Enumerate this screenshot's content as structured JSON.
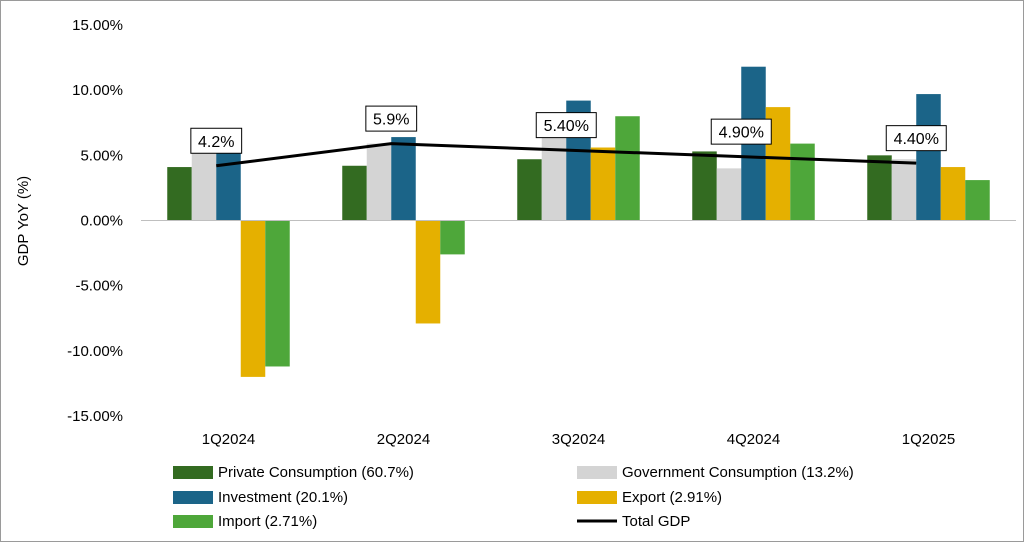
{
  "chart_data": {
    "type": "bar",
    "title": "",
    "xlabel": "",
    "ylabel": "GDP YoY (%)",
    "ylim": [
      -15,
      15
    ],
    "yticks": [
      {
        "value": 15,
        "label": "15.00%"
      },
      {
        "value": 10,
        "label": "10.00%"
      },
      {
        "value": 5,
        "label": "5.00%"
      },
      {
        "value": 0,
        "label": "0.00%"
      },
      {
        "value": -5,
        "label": "-5.00%"
      },
      {
        "value": -10,
        "label": "-10.00%"
      },
      {
        "value": -15,
        "label": "-15.00%"
      }
    ],
    "categories": [
      "1Q2024",
      "2Q2024",
      "3Q2024",
      "4Q2024",
      "1Q2025"
    ],
    "series": [
      {
        "name": "Private Consumption (60.7%)",
        "color": "#336B21",
        "values": [
          4.1,
          4.2,
          4.7,
          5.3,
          5.0
        ]
      },
      {
        "name": "Government Consumption (13.2%)",
        "color": "#D4D4D4",
        "values": [
          5.3,
          5.9,
          7.2,
          4.0,
          4.7
        ]
      },
      {
        "name": "Investment (20.1%)",
        "color": "#1B6488",
        "values": [
          5.6,
          6.4,
          9.2,
          11.8,
          9.7
        ]
      },
      {
        "name": "Export (2.91%)",
        "color": "#E5B000",
        "values": [
          -12.0,
          -7.9,
          5.6,
          8.7,
          4.1
        ]
      },
      {
        "name": "Import (2.71%)",
        "color": "#4EA73A",
        "values": [
          -11.2,
          -2.6,
          8.0,
          5.9,
          3.1
        ]
      }
    ],
    "line": {
      "name": "Total GDP",
      "color": "#000000",
      "values": [
        4.2,
        5.9,
        5.4,
        4.9,
        4.4
      ],
      "labels": [
        "4.2%",
        "5.9%",
        "5.40%",
        "4.90%",
        "4.40%"
      ]
    },
    "legend_position": "bottom",
    "grid": false
  }
}
